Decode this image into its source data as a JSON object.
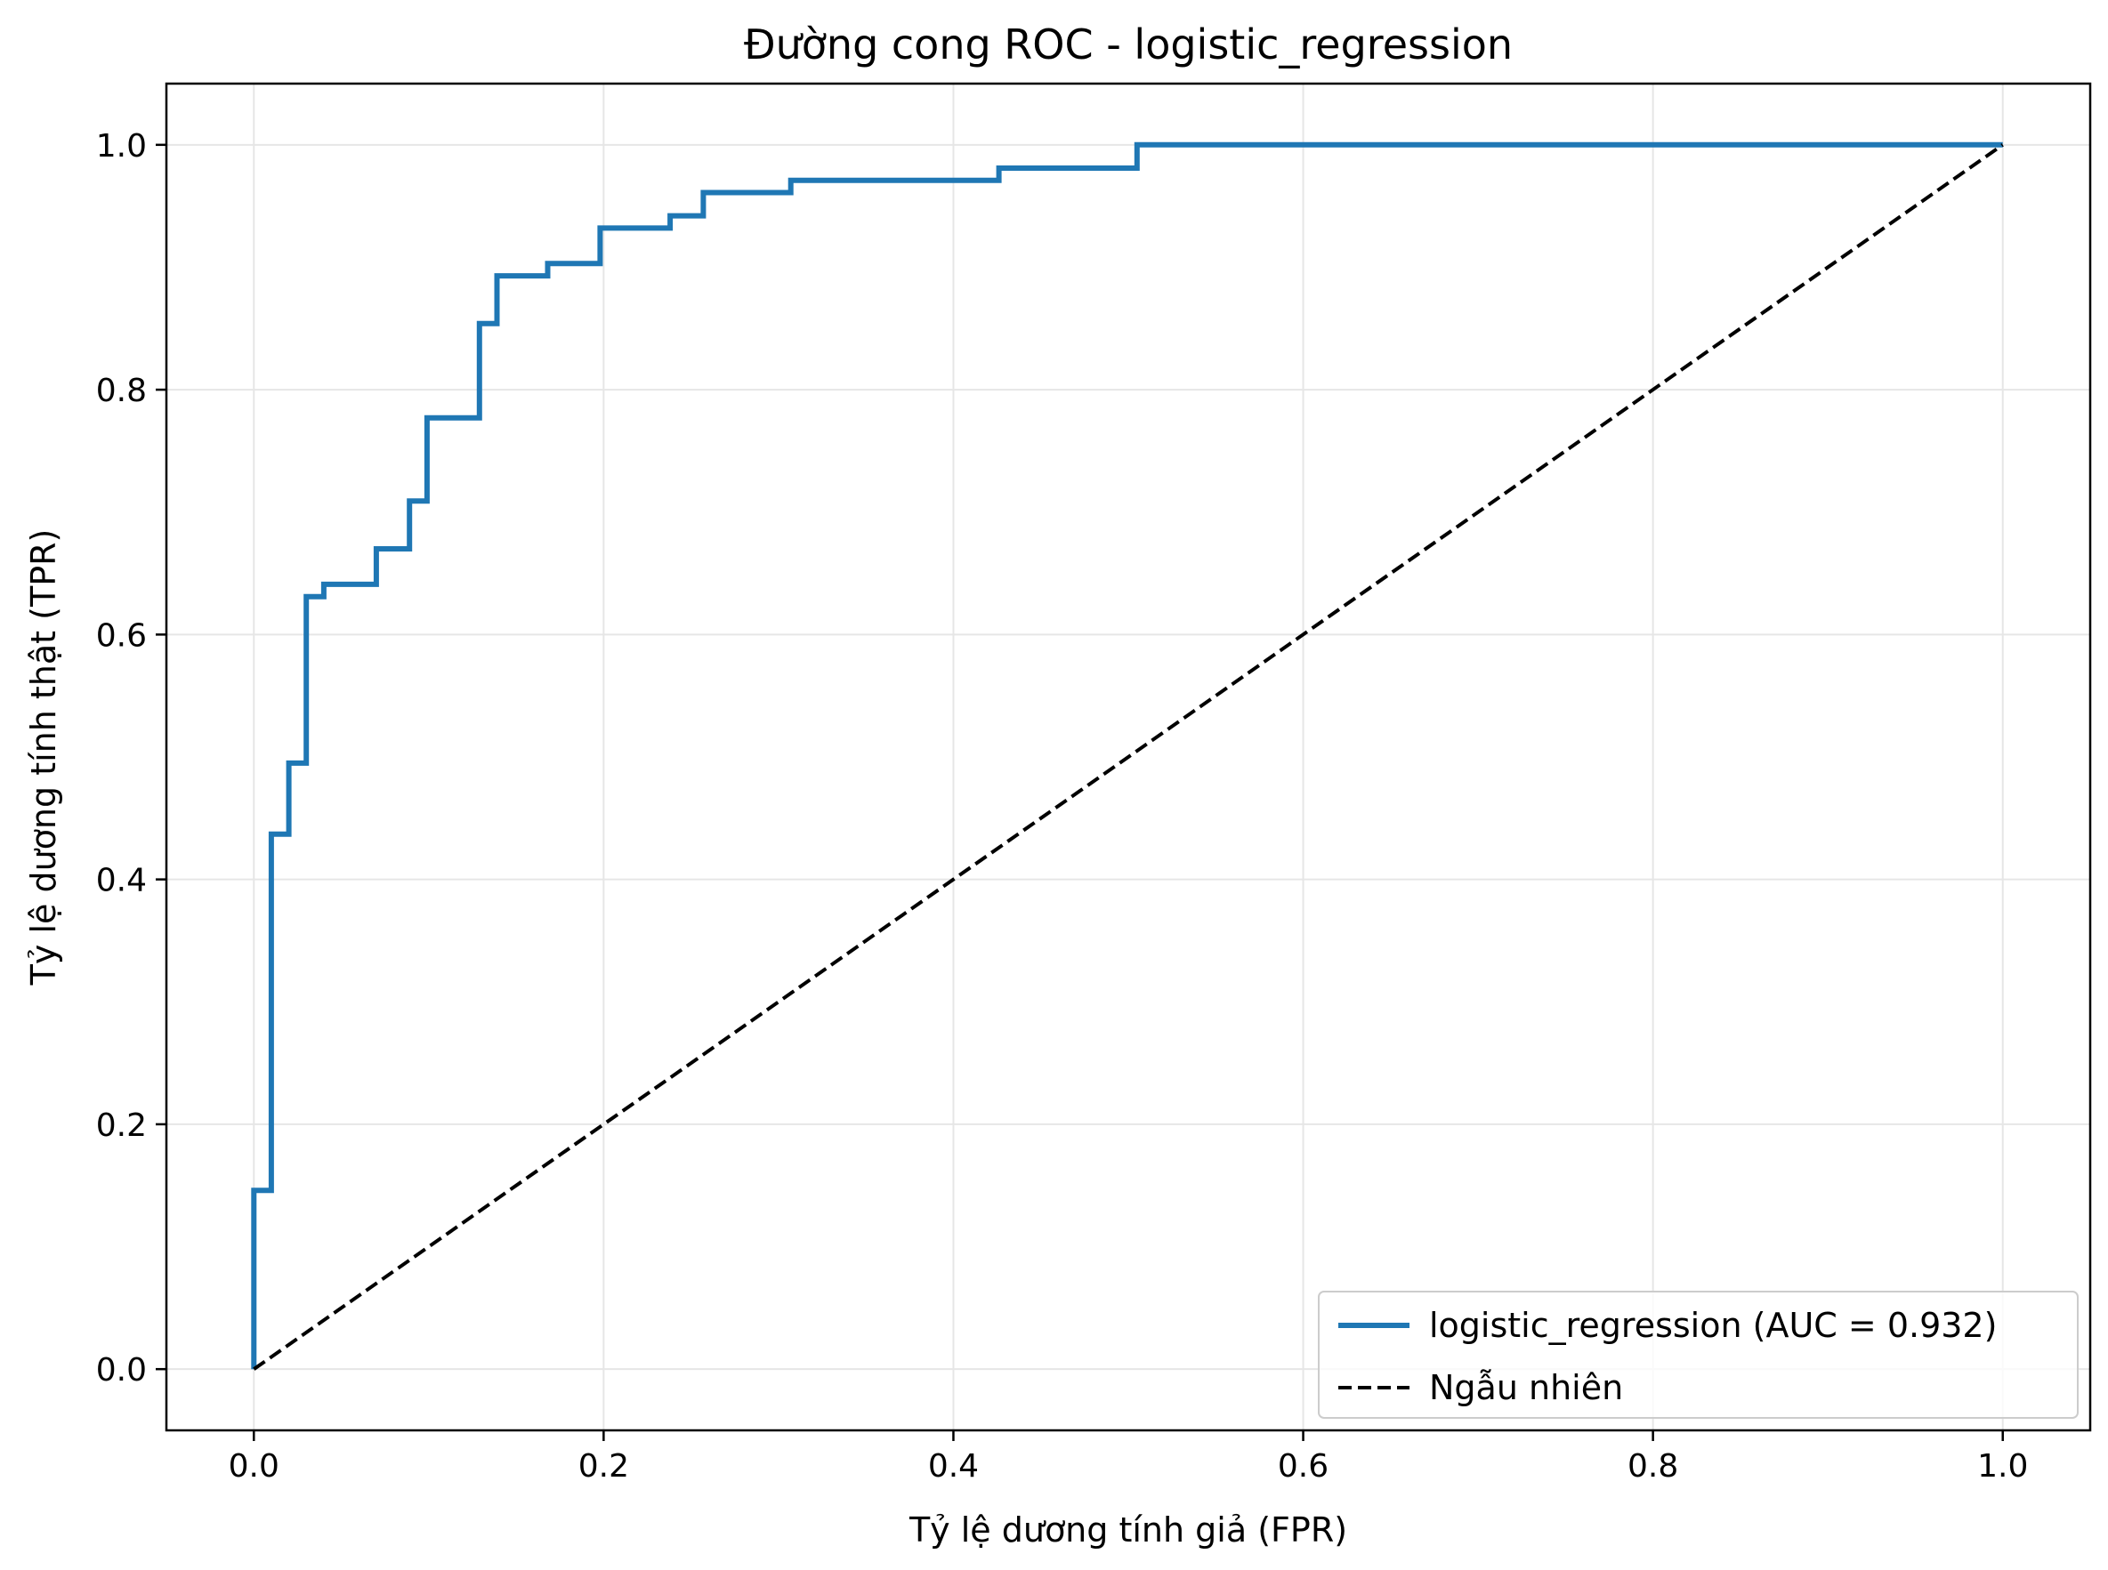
{
  "chart_data": {
    "type": "line",
    "title": "Đường cong ROC - logistic_regression",
    "xlabel": "Tỷ lệ dương tính giả (FPR)",
    "ylabel": "Tỷ lệ dương tính thật (TPR)",
    "xlim": [
      -0.05,
      1.05
    ],
    "ylim": [
      -0.05,
      1.05
    ],
    "xticks": [
      0.0,
      0.2,
      0.4,
      0.6,
      0.8,
      1.0
    ],
    "yticks": [
      0.0,
      0.2,
      0.4,
      0.6,
      0.8,
      1.0
    ],
    "xtick_labels": [
      "0.0",
      "0.2",
      "0.4",
      "0.6",
      "0.8",
      "1.0"
    ],
    "ytick_labels": [
      "0.0",
      "0.2",
      "0.4",
      "0.6",
      "0.8",
      "1.0"
    ],
    "grid": true,
    "legend_position": "lower-right",
    "series": [
      {
        "name": "logistic_regression (AUC = 0.932)",
        "color": "#1f77b4",
        "style": "solid",
        "x": [
          0.0,
          0.0,
          0.01,
          0.01,
          0.02,
          0.02,
          0.03,
          0.03,
          0.04,
          0.04,
          0.07,
          0.07,
          0.089,
          0.089,
          0.099,
          0.099,
          0.129,
          0.129,
          0.139,
          0.139,
          0.168,
          0.168,
          0.198,
          0.198,
          0.238,
          0.238,
          0.257,
          0.257,
          0.307,
          0.307,
          0.426,
          0.426,
          0.505,
          0.505,
          1.0
        ],
        "y": [
          0.0,
          0.146,
          0.146,
          0.437,
          0.437,
          0.495,
          0.495,
          0.631,
          0.631,
          0.641,
          0.641,
          0.67,
          0.67,
          0.709,
          0.709,
          0.777,
          0.777,
          0.854,
          0.854,
          0.893,
          0.893,
          0.903,
          0.903,
          0.932,
          0.932,
          0.942,
          0.942,
          0.961,
          0.961,
          0.971,
          0.971,
          0.981,
          0.981,
          1.0,
          1.0
        ]
      },
      {
        "name": "Ngẫu nhiên",
        "color": "#000000",
        "style": "dashed",
        "x": [
          0.0,
          1.0
        ],
        "y": [
          0.0,
          1.0
        ]
      }
    ]
  }
}
